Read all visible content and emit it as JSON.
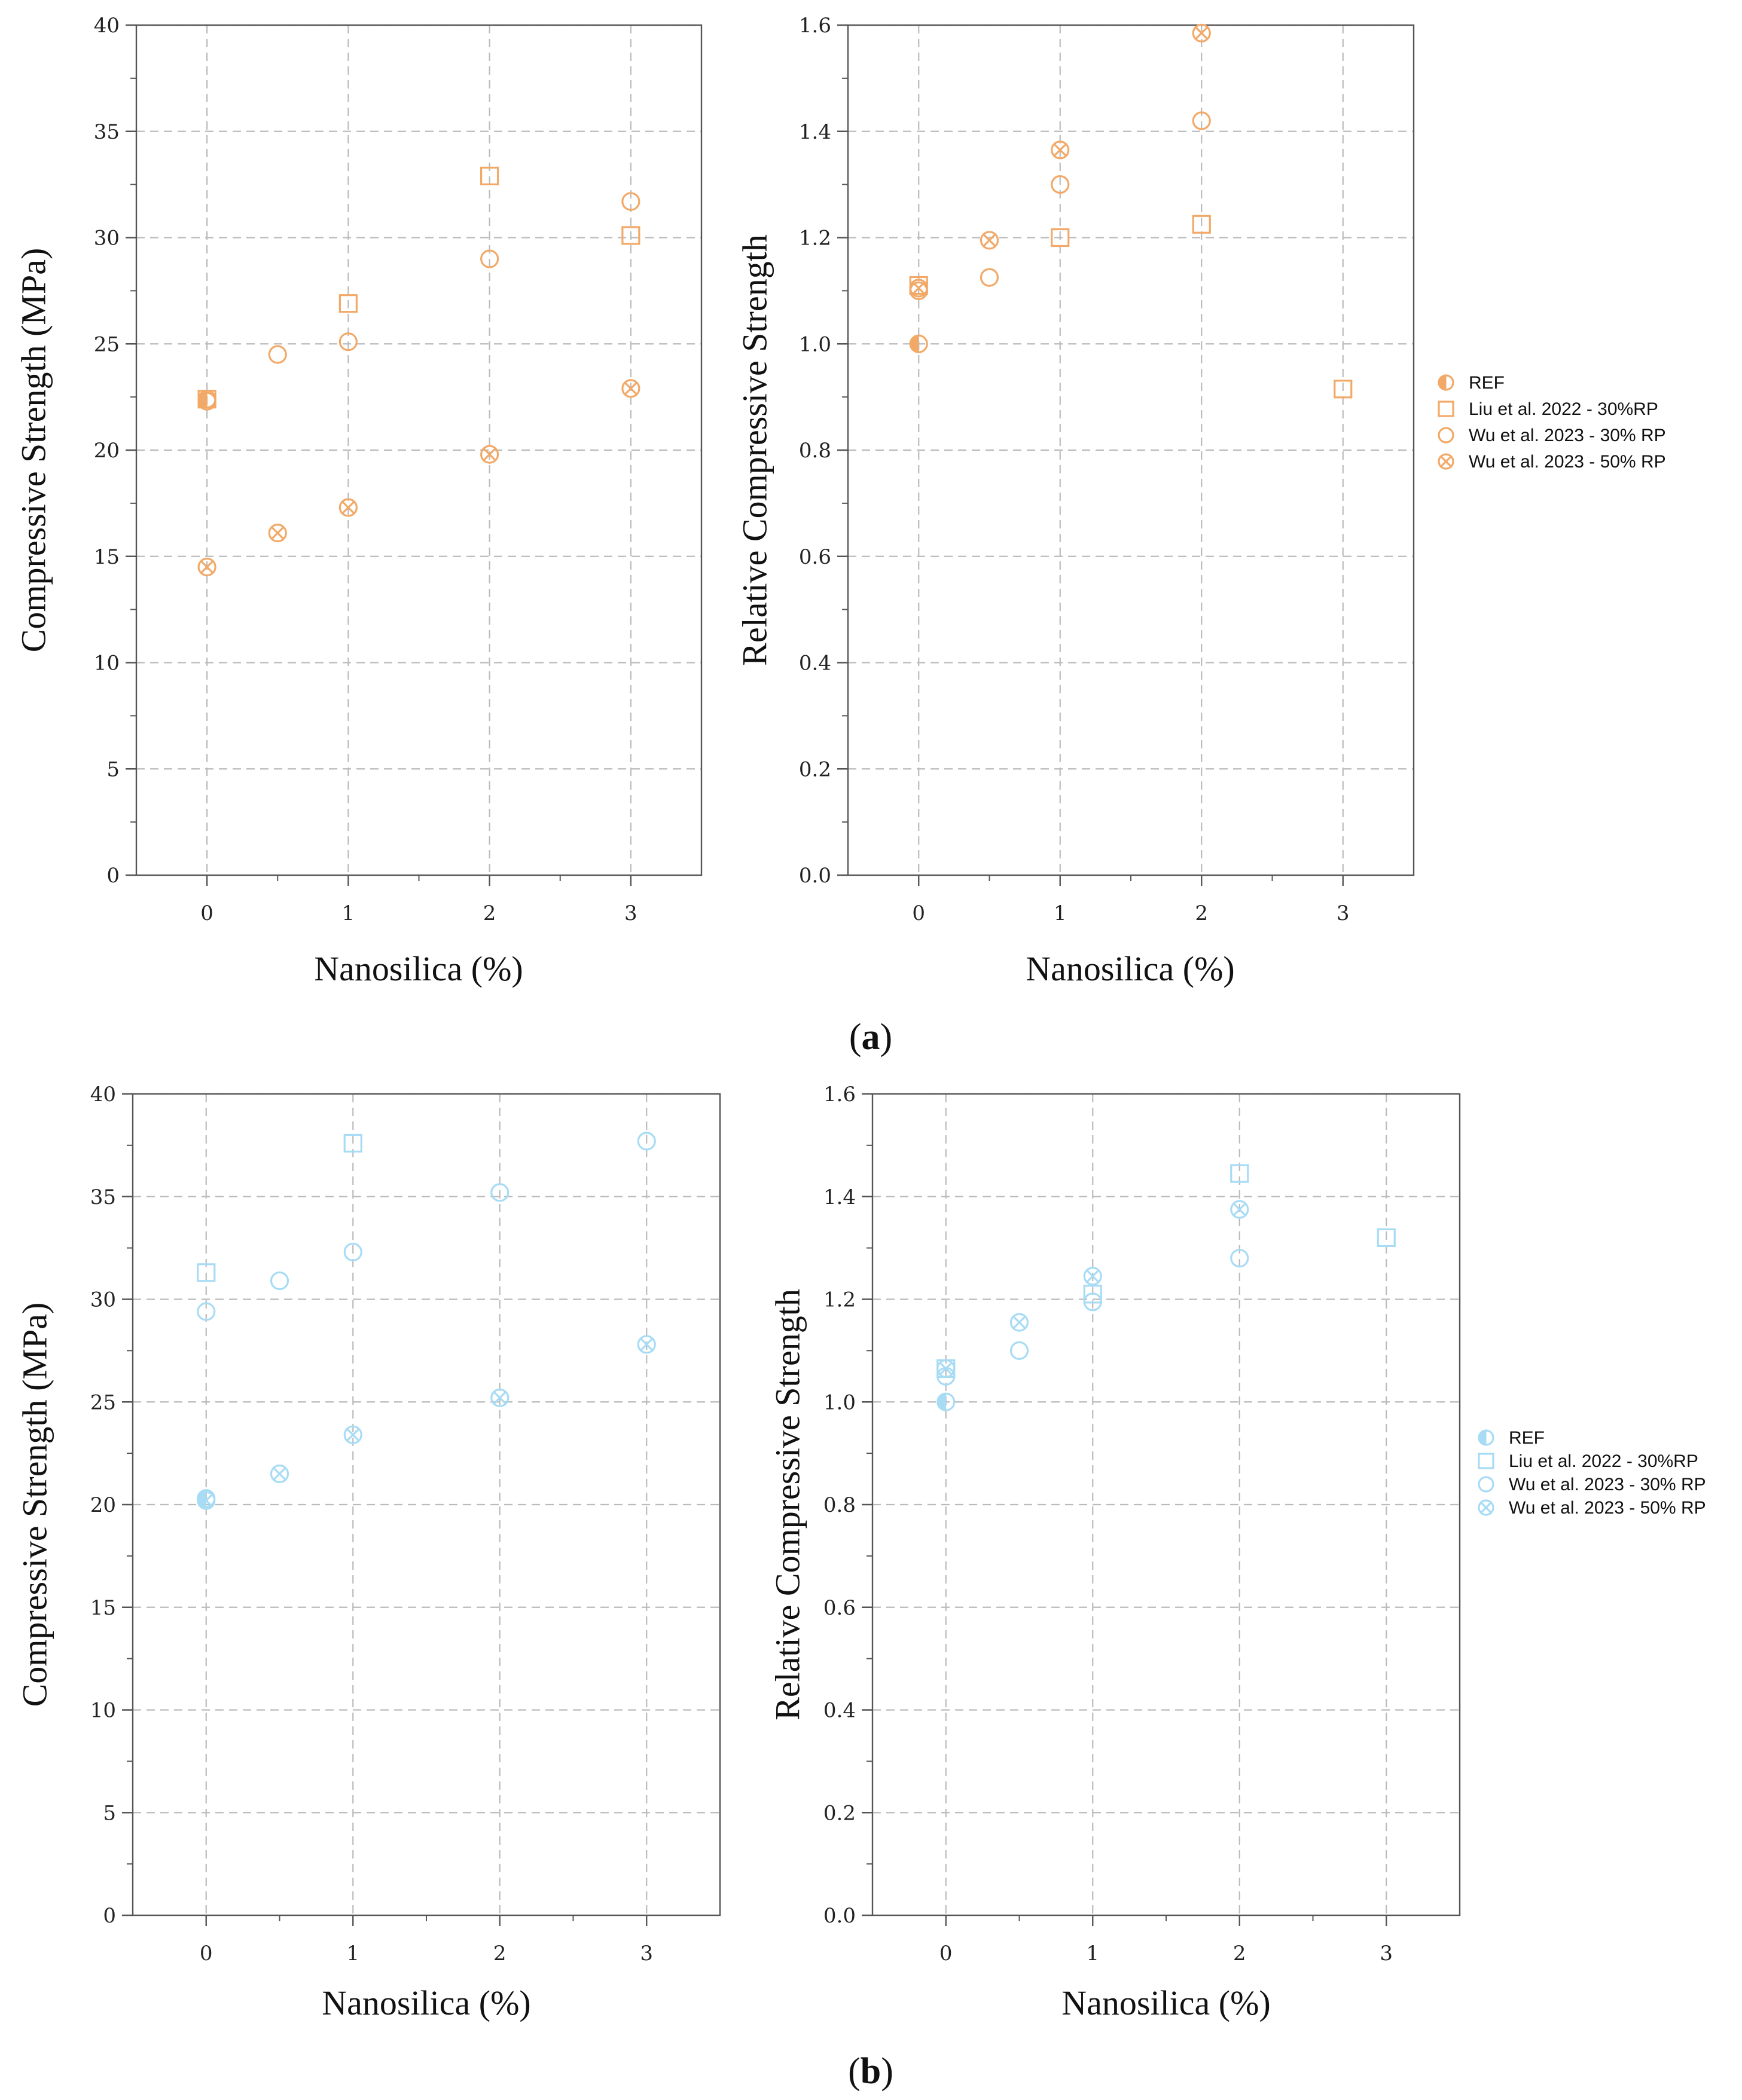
{
  "colors": {
    "panel_a": "#F2A968",
    "panel_b": "#A8DCF5",
    "grid": "#bbbbbb",
    "axis": "#555555"
  },
  "captions": {
    "a_open": "(",
    "a_letter": "a",
    "a_close": ")",
    "b_open": "(",
    "b_letter": "b",
    "b_close": ")"
  },
  "chart_data": [
    {
      "id": "a-left",
      "type": "scatter",
      "color_key": "panel_a",
      "xlabel": "Nanosilica (%)",
      "ylabel": "Compressive Strength (MPa)",
      "xlim": [
        -0.5,
        3.5
      ],
      "ylim": [
        0,
        40
      ],
      "xticks": [
        "0",
        "1",
        "2",
        "3"
      ],
      "xtick_values": [
        0,
        1,
        2,
        3
      ],
      "yticks": [
        "0",
        "5",
        "10",
        "15",
        "20",
        "25",
        "30",
        "35",
        "40"
      ],
      "ytick_values": [
        0,
        5,
        10,
        15,
        20,
        25,
        30,
        35,
        40
      ],
      "grid": true,
      "series": [
        {
          "name": "REF",
          "marker": "half",
          "x": [
            0
          ],
          "y": [
            22.4
          ]
        },
        {
          "name": "Liu et al. 2022 - 30%RP",
          "marker": "square",
          "x": [
            0,
            1,
            2,
            3
          ],
          "y": [
            22.4,
            26.9,
            32.9,
            30.1
          ]
        },
        {
          "name": "Wu et al. 2023 - 30% RP",
          "marker": "circle",
          "x": [
            0,
            0.5,
            1,
            2,
            3
          ],
          "y": [
            22.3,
            24.5,
            25.1,
            29.0,
            31.7
          ]
        },
        {
          "name": "Wu et al. 2023 - 50% RP",
          "marker": "xcircle",
          "x": [
            0,
            0.5,
            1,
            2,
            3
          ],
          "y": [
            14.5,
            16.1,
            17.3,
            19.8,
            22.9
          ]
        }
      ]
    },
    {
      "id": "a-right",
      "type": "scatter",
      "color_key": "panel_a",
      "xlabel": "Nanosilica (%)",
      "ylabel": "Relative Compressive Strength",
      "xlim": [
        -0.5,
        3.5
      ],
      "ylim": [
        0,
        1.6
      ],
      "xticks": [
        "0",
        "1",
        "2",
        "3"
      ],
      "xtick_values": [
        0,
        1,
        2,
        3
      ],
      "yticks": [
        "0.0",
        "0.2",
        "0.4",
        "0.6",
        "0.8",
        "1.0",
        "1.2",
        "1.4",
        "1.6"
      ],
      "ytick_values": [
        0,
        0.2,
        0.4,
        0.6,
        0.8,
        1.0,
        1.2,
        1.4,
        1.6
      ],
      "grid": true,
      "series": [
        {
          "name": "REF",
          "marker": "half",
          "x": [
            0
          ],
          "y": [
            1.0
          ]
        },
        {
          "name": "Liu et al. 2022 - 30%RP",
          "marker": "square",
          "x": [
            0,
            1,
            2,
            3
          ],
          "y": [
            1.11,
            1.2,
            1.225,
            0.915
          ]
        },
        {
          "name": "Wu et al. 2023 - 30% RP",
          "marker": "circle",
          "x": [
            0,
            0.5,
            1,
            2
          ],
          "y": [
            1.1,
            1.125,
            1.3,
            1.42
          ]
        },
        {
          "name": "Wu et al. 2023 - 50% RP",
          "marker": "xcircle",
          "x": [
            0,
            0.5,
            1,
            2
          ],
          "y": [
            1.105,
            1.195,
            1.365,
            1.585
          ]
        }
      ],
      "legend": {
        "position": "right",
        "entries": [
          {
            "marker": "half",
            "label": "REF"
          },
          {
            "marker": "square",
            "label": "Liu et al. 2022 - 30%RP"
          },
          {
            "marker": "circle",
            "label": "Wu et al. 2023 - 30% RP"
          },
          {
            "marker": "xcircle",
            "label": "Wu et al. 2023 - 50% RP"
          }
        ]
      }
    },
    {
      "id": "b-left",
      "type": "scatter",
      "color_key": "panel_b",
      "xlabel": "Nanosilica (%)",
      "ylabel": "Compressive Strength (MPa)",
      "xlim": [
        -0.5,
        3.5
      ],
      "ylim": [
        0,
        40
      ],
      "xticks": [
        "0",
        "1",
        "2",
        "3"
      ],
      "xtick_values": [
        0,
        1,
        2,
        3
      ],
      "yticks": [
        "0",
        "5",
        "10",
        "15",
        "20",
        "25",
        "30",
        "35",
        "40"
      ],
      "ytick_values": [
        0,
        5,
        10,
        15,
        20,
        25,
        30,
        35,
        40
      ],
      "grid": true,
      "series": [
        {
          "name": "REF",
          "marker": "half",
          "x": [
            0
          ],
          "y": [
            20.3
          ]
        },
        {
          "name": "Liu et al. 2022 - 30%RP",
          "marker": "square",
          "x": [
            0,
            1
          ],
          "y": [
            31.3,
            37.6
          ]
        },
        {
          "name": "Wu et al. 2023 - 30% RP",
          "marker": "circle",
          "x": [
            0,
            0.5,
            1,
            2,
            3
          ],
          "y": [
            29.4,
            30.9,
            32.3,
            35.2,
            37.7
          ]
        },
        {
          "name": "Wu et al. 2023 - 50% RP",
          "marker": "xcircle",
          "x": [
            0,
            0.5,
            1,
            2.0,
            3
          ],
          "y": [
            20.2,
            21.5,
            23.4,
            25.2,
            27.8
          ]
        }
      ]
    },
    {
      "id": "b-right",
      "type": "scatter",
      "color_key": "panel_b",
      "xlabel": "Nanosilica (%)",
      "ylabel": "Relative Compressive Strength",
      "xlim": [
        -0.5,
        3.5
      ],
      "ylim": [
        0,
        1.6
      ],
      "xticks": [
        "0",
        "1",
        "2",
        "3"
      ],
      "xtick_values": [
        0,
        1,
        2,
        3
      ],
      "yticks": [
        "0.0",
        "0.2",
        "0.4",
        "0.6",
        "0.8",
        "1.0",
        "1.2",
        "1.4",
        "1.6"
      ],
      "ytick_values": [
        0,
        0.2,
        0.4,
        0.6,
        0.8,
        1.0,
        1.2,
        1.4,
        1.6
      ],
      "grid": true,
      "series": [
        {
          "name": "REF",
          "marker": "half",
          "x": [
            0
          ],
          "y": [
            1.0
          ]
        },
        {
          "name": "Liu et al. 2022 - 30%RP",
          "marker": "square",
          "x": [
            0,
            1,
            2,
            3
          ],
          "y": [
            1.065,
            1.21,
            1.445,
            1.32
          ]
        },
        {
          "name": "Wu et al. 2023 - 30% RP",
          "marker": "circle",
          "x": [
            0,
            0.5,
            1,
            2
          ],
          "y": [
            1.05,
            1.1,
            1.195,
            1.28
          ]
        },
        {
          "name": "Wu et al. 2023 - 50% RP",
          "marker": "xcircle",
          "x": [
            0,
            0.5,
            1,
            2
          ],
          "y": [
            1.065,
            1.155,
            1.245,
            1.375
          ]
        }
      ],
      "legend": {
        "position": "right",
        "entries": [
          {
            "marker": "half",
            "label": "REF"
          },
          {
            "marker": "square",
            "label": "Liu et al. 2022 - 30%RP"
          },
          {
            "marker": "circle",
            "label": "Wu et al. 2023 - 30% RP"
          },
          {
            "marker": "xcircle",
            "label": "Wu et al. 2023 - 50% RP"
          }
        ]
      }
    }
  ]
}
